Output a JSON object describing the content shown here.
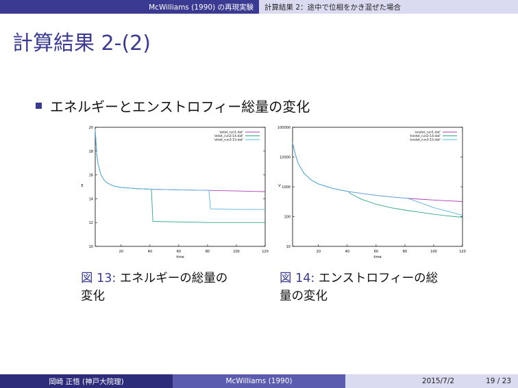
{
  "header": {
    "section": "McWilliams (1990) の再現実験",
    "subsection": "計算結果 2：途中で位相をかき混ぜた場合"
  },
  "slide_title": "計算結果 2-(2)",
  "bullet": "エネルギーとエンストロフィー総量の変化",
  "figures": [
    {
      "label": "図 13:",
      "caption_line1": "エネルギーの総量の",
      "caption_line2": "変化"
    },
    {
      "label": "図 14:",
      "caption_line1": "エンストロフィーの総",
      "caption_line2": "量の変化"
    }
  ],
  "footer": {
    "author": "岡崎 正悟 (神戸大院理)",
    "short_title": "McWilliams (1990)",
    "date": "2015/7/2",
    "page": "19 / 23"
  },
  "chart_data": [
    {
      "type": "line",
      "xlabel": "time",
      "ylabel": "E",
      "xlim": [
        2,
        120
      ],
      "ylim": [
        10,
        20
      ],
      "xticks": [
        20,
        40,
        60,
        80,
        100,
        120
      ],
      "yticks": [
        10,
        12,
        14,
        16,
        18,
        20
      ],
      "legend_position": "top-right",
      "series": [
        {
          "name": "'ektot_run1.dat'",
          "color": "#b23bb2",
          "x": [
            2,
            3,
            4,
            6,
            8,
            10,
            15,
            20,
            30,
            40,
            60,
            80,
            100,
            120
          ],
          "y": [
            19.8,
            17.8,
            16.9,
            16.0,
            15.6,
            15.35,
            15.05,
            14.95,
            14.85,
            14.8,
            14.75,
            14.7,
            14.65,
            14.6
          ]
        },
        {
          "name": "'ektot_run2-14.dat'",
          "color": "#2ea58a",
          "x": [
            2,
            3,
            4,
            6,
            8,
            10,
            15,
            20,
            30,
            40,
            41,
            42,
            60,
            80,
            100,
            120
          ],
          "y": [
            19.8,
            17.8,
            16.9,
            16.0,
            15.6,
            15.35,
            15.05,
            14.95,
            14.85,
            14.8,
            14.8,
            12.1,
            12.05,
            12.0,
            12.0,
            12.0
          ]
        },
        {
          "name": "'ektot_run3-15.dat'",
          "color": "#56b4e0",
          "x": [
            2,
            3,
            4,
            6,
            8,
            10,
            15,
            20,
            30,
            40,
            60,
            80,
            81,
            82,
            100,
            120
          ],
          "y": [
            19.8,
            17.8,
            16.9,
            16.0,
            15.6,
            15.35,
            15.05,
            14.95,
            14.85,
            14.8,
            14.75,
            14.7,
            14.7,
            13.15,
            13.1,
            13.1
          ]
        }
      ]
    },
    {
      "type": "line",
      "xlabel": "time",
      "ylabel": "V",
      "xlim": [
        2,
        120
      ],
      "ylim": [
        10,
        100000
      ],
      "log_y": true,
      "xticks": [
        20,
        40,
        60,
        80,
        100,
        120
      ],
      "yticks": [
        10,
        100,
        1000,
        10000,
        100000
      ],
      "legend_position": "top-right",
      "series": [
        {
          "name": "'enstot_run1.dat'",
          "color": "#b23bb2",
          "x": [
            2,
            4,
            6,
            10,
            15,
            20,
            30,
            40,
            50,
            60,
            70,
            80,
            90,
            100,
            110,
            120
          ],
          "y": [
            30000,
            12000,
            6000,
            2800,
            1700,
            1250,
            880,
            700,
            600,
            520,
            460,
            420,
            385,
            360,
            340,
            320
          ]
        },
        {
          "name": "'enstot_run2-14.dat'",
          "color": "#2ea58a",
          "x": [
            2,
            4,
            6,
            10,
            15,
            20,
            30,
            40,
            41,
            42,
            50,
            60,
            70,
            80,
            90,
            100,
            110,
            120
          ],
          "y": [
            30000,
            12000,
            6000,
            2800,
            1700,
            1250,
            880,
            700,
            690,
            600,
            380,
            260,
            200,
            165,
            140,
            120,
            105,
            95
          ]
        },
        {
          "name": "'enstot_run3-15.dat'",
          "color": "#56b4e0",
          "x": [
            2,
            4,
            6,
            10,
            15,
            20,
            30,
            40,
            50,
            60,
            70,
            80,
            82,
            90,
            100,
            110,
            120
          ],
          "y": [
            30000,
            12000,
            6000,
            2800,
            1700,
            1250,
            880,
            700,
            600,
            520,
            460,
            420,
            410,
            300,
            200,
            150,
            110
          ]
        }
      ]
    }
  ]
}
